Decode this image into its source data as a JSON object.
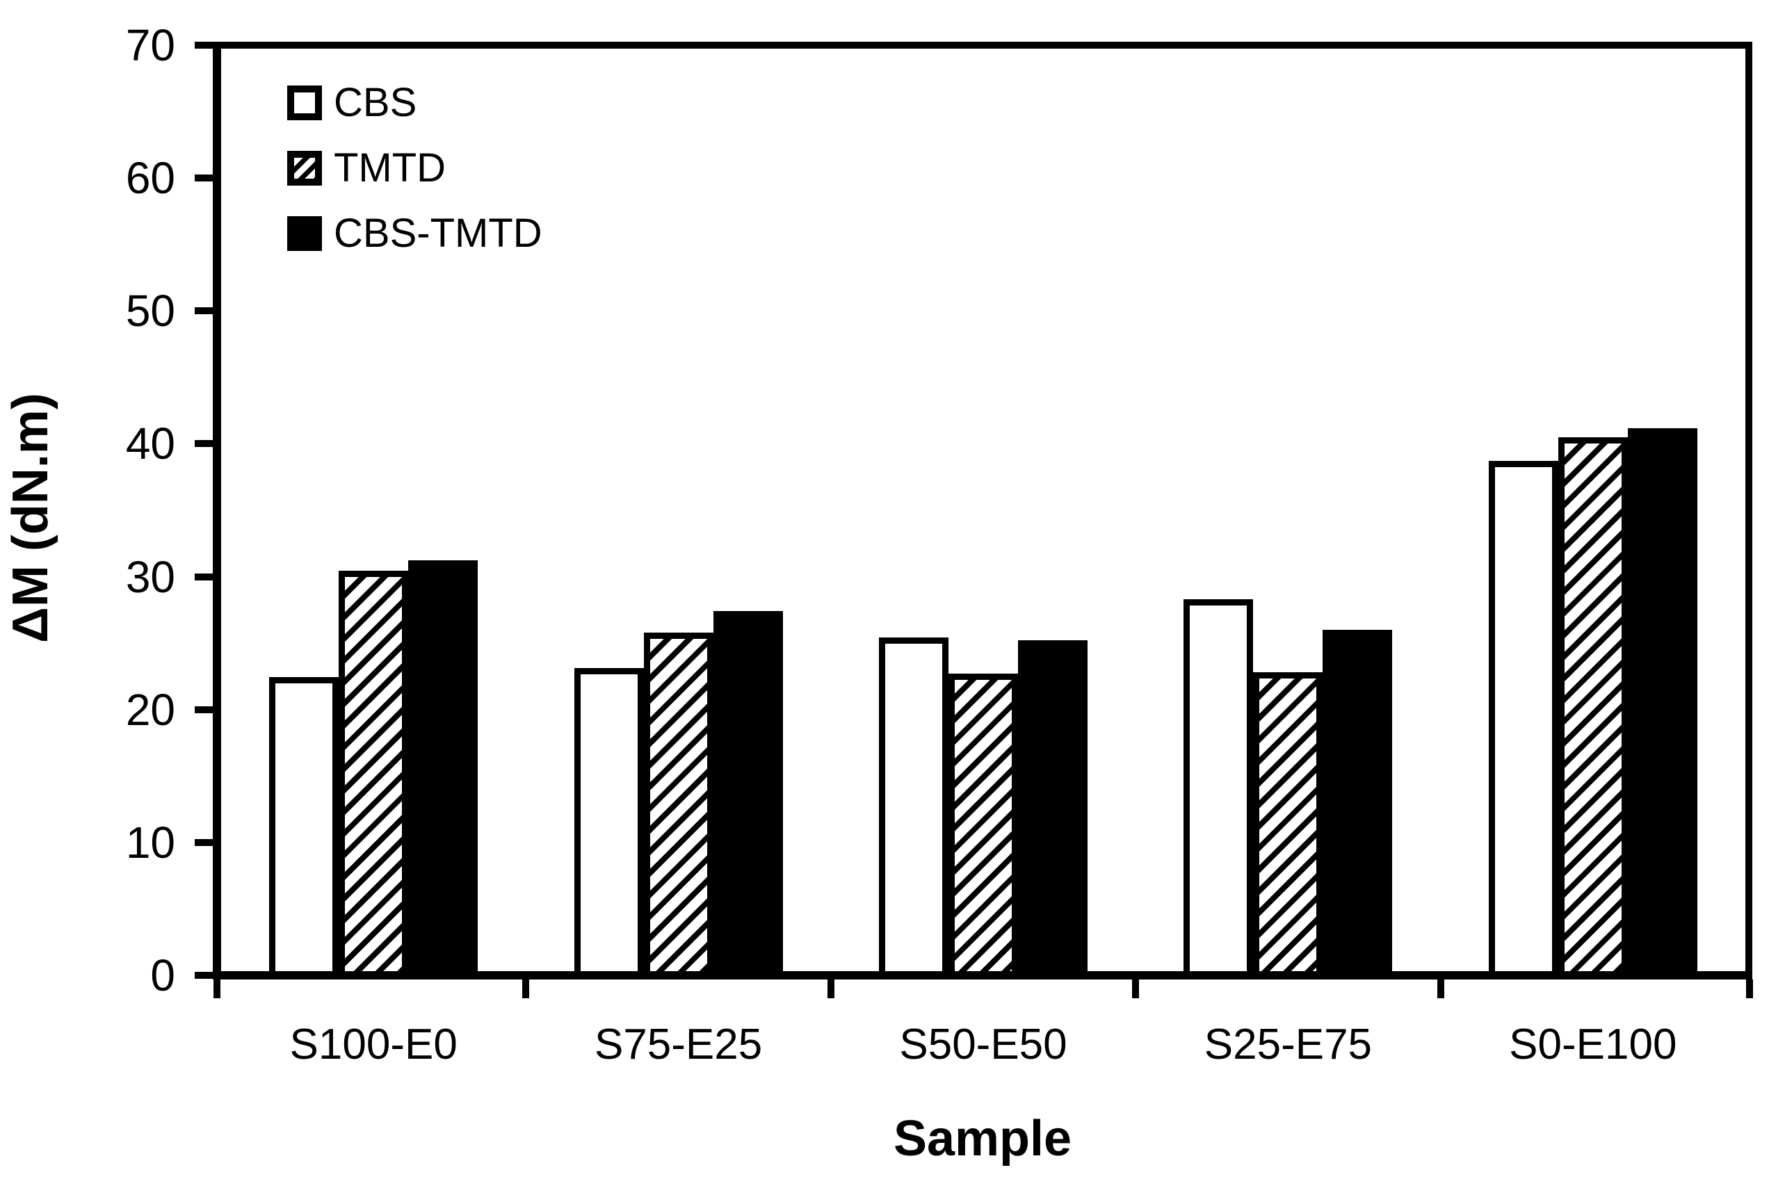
{
  "figure": {
    "background": "#ffffff",
    "axis_color": "#000000"
  },
  "chart_data": {
    "type": "bar",
    "title": "",
    "xlabel": "Sample",
    "ylabel": "ΔM (dN.m)",
    "categories": [
      "S100-E0",
      "S75-E25",
      "S50-E50",
      "S25-E75",
      "S0-E100"
    ],
    "series": [
      {
        "name": "CBS",
        "fill": "white",
        "values": [
          22.3,
          23.0,
          25.3,
          28.2,
          38.7
        ]
      },
      {
        "name": "TMTD",
        "fill": "hatch",
        "values": [
          30.4,
          25.7,
          22.6,
          22.7,
          40.5
        ]
      },
      {
        "name": "CBS-TMTD",
        "fill": "black",
        "values": [
          31.2,
          27.3,
          25.1,
          25.9,
          41.2
        ]
      }
    ],
    "ylim": [
      0,
      70
    ],
    "yticks": [
      0,
      10,
      20,
      30,
      40,
      50,
      60,
      70
    ],
    "grid": false,
    "legend_position": "top-left-inside",
    "colors": {
      "bar_white": "#ffffff",
      "bar_hatch_stripe": "#000000",
      "bar_black": "#000000"
    }
  }
}
